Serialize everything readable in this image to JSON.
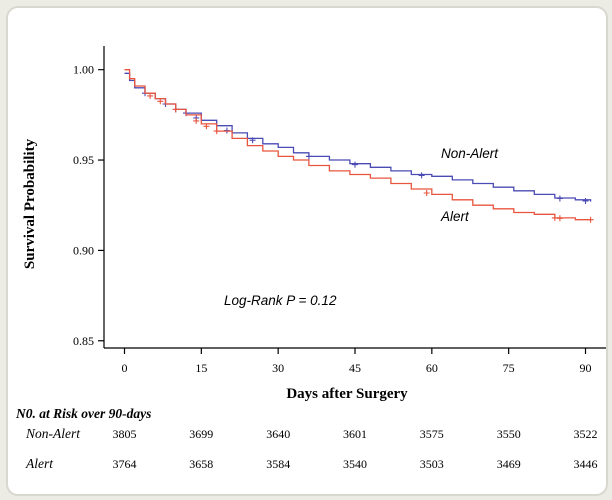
{
  "chart_data": {
    "type": "line",
    "ylabel": "Survival Probability",
    "xlabel": "Days after Surgery",
    "xlim": [
      -4,
      94
    ],
    "ylim": [
      0.846,
      1.012
    ],
    "xticks": [
      0,
      15,
      30,
      45,
      60,
      75,
      90
    ],
    "xtick_labels": [
      "0",
      "15",
      "30",
      "45",
      "60",
      "75",
      "90"
    ],
    "yticks": [
      0.85,
      0.9,
      0.95,
      1.0
    ],
    "ytick_labels": [
      "0.85",
      "0.90",
      "0.95",
      "1.00"
    ],
    "annotation": "Log-Rank P = 0.12",
    "series": [
      {
        "name": "Non-Alert",
        "color": "#4b4bb5",
        "x": [
          0,
          1,
          2,
          4,
          6,
          8,
          10,
          12,
          15,
          18,
          21,
          24,
          27,
          30,
          33,
          36,
          40,
          44,
          48,
          52,
          56,
          60,
          64,
          68,
          72,
          76,
          80,
          84,
          88,
          91
        ],
        "y": [
          0.998,
          0.994,
          0.99,
          0.987,
          0.984,
          0.981,
          0.978,
          0.976,
          0.972,
          0.969,
          0.965,
          0.962,
          0.959,
          0.957,
          0.954,
          0.952,
          0.95,
          0.948,
          0.946,
          0.944,
          0.942,
          0.941,
          0.939,
          0.937,
          0.935,
          0.933,
          0.931,
          0.929,
          0.928,
          0.927
        ],
        "censor_x": [
          4,
          8,
          10,
          12,
          14,
          20,
          25,
          36,
          45,
          58,
          85,
          90
        ]
      },
      {
        "name": "Alert",
        "color": "#e8553f",
        "x": [
          0,
          1,
          2,
          4,
          6,
          8,
          10,
          12,
          15,
          18,
          21,
          24,
          27,
          30,
          33,
          36,
          40,
          44,
          48,
          52,
          56,
          60,
          64,
          68,
          72,
          76,
          80,
          84,
          88,
          91
        ],
        "y": [
          1.0,
          0.995,
          0.991,
          0.987,
          0.984,
          0.981,
          0.978,
          0.975,
          0.97,
          0.966,
          0.962,
          0.958,
          0.955,
          0.952,
          0.95,
          0.947,
          0.944,
          0.942,
          0.94,
          0.937,
          0.934,
          0.931,
          0.928,
          0.925,
          0.923,
          0.921,
          0.92,
          0.918,
          0.917,
          0.917
        ],
        "censor_x": [
          5,
          7,
          10,
          14,
          16,
          18,
          59,
          84,
          85,
          91
        ]
      }
    ]
  },
  "risk_table": {
    "title": "N0. at Risk over 90-days",
    "rows": [
      {
        "label": "Non-Alert",
        "values": [
          "3805",
          "3699",
          "3640",
          "3601",
          "3575",
          "3550",
          "3522"
        ]
      },
      {
        "label": "Alert",
        "values": [
          "3764",
          "3658",
          "3584",
          "3540",
          "3503",
          "3469",
          "3446"
        ]
      }
    ]
  }
}
